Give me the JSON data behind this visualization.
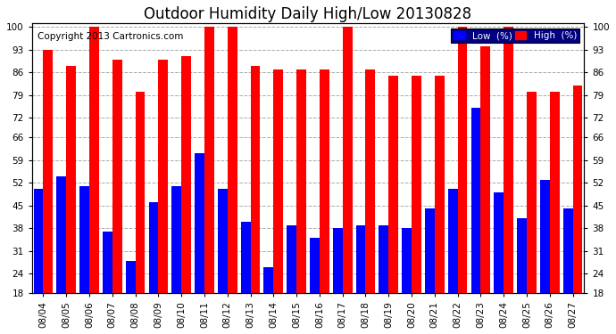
{
  "title": "Outdoor Humidity Daily High/Low 20130828",
  "copyright": "Copyright 2013 Cartronics.com",
  "dates": [
    "08/04",
    "08/05",
    "08/06",
    "08/07",
    "08/08",
    "08/09",
    "08/10",
    "08/11",
    "08/12",
    "08/13",
    "08/14",
    "08/15",
    "08/16",
    "08/17",
    "08/18",
    "08/19",
    "08/20",
    "08/21",
    "08/22",
    "08/23",
    "08/24",
    "08/25",
    "08/26",
    "08/27"
  ],
  "high": [
    93,
    88,
    100,
    90,
    80,
    90,
    91,
    100,
    100,
    88,
    87,
    87,
    87,
    100,
    87,
    85,
    85,
    85,
    100,
    94,
    100,
    80,
    80,
    82
  ],
  "low": [
    50,
    54,
    51,
    37,
    28,
    46,
    51,
    61,
    50,
    40,
    26,
    39,
    35,
    38,
    39,
    39,
    38,
    44,
    50,
    75,
    49,
    41,
    53,
    44
  ],
  "ylim_min": 18,
  "ylim_max": 101,
  "yticks": [
    18,
    24,
    31,
    38,
    45,
    52,
    59,
    66,
    72,
    79,
    86,
    93,
    100
  ],
  "bar_width": 0.42,
  "high_color": "#ff0000",
  "low_color": "#0000ff",
  "bg_color": "#ffffff",
  "plot_bg_color": "#ffffff",
  "grid_color": "#aaaaaa",
  "legend_low_label": "Low  (%)",
  "legend_high_label": "High  (%)",
  "title_fontsize": 12,
  "copyright_fontsize": 7.5,
  "tick_fontsize": 7.5,
  "legend_fontsize": 7.5
}
